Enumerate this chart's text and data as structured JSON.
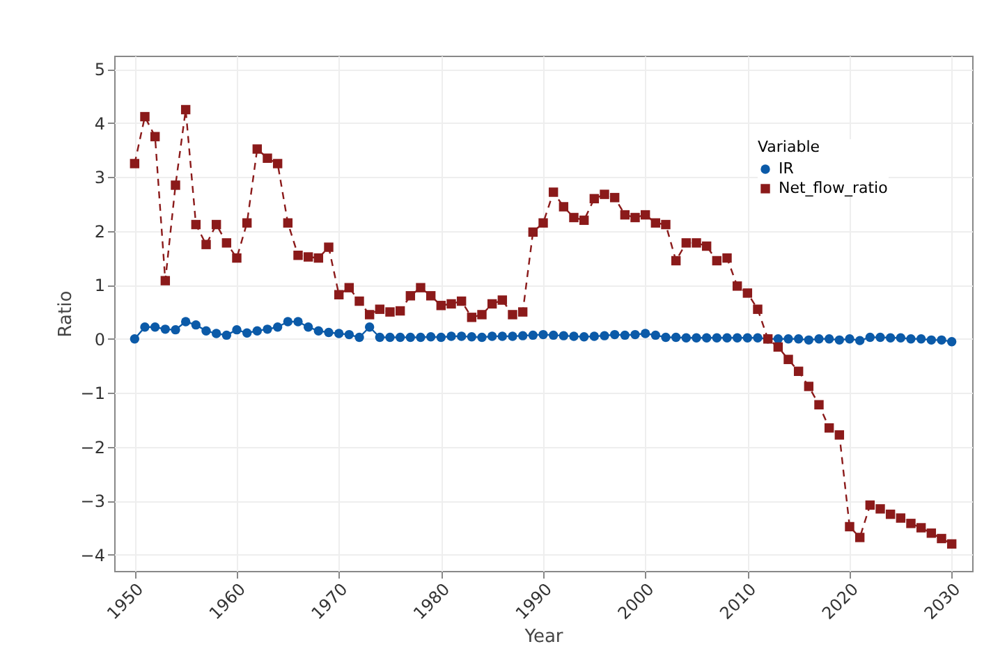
{
  "chart_data": {
    "type": "line",
    "xlabel": "Year",
    "ylabel": "Ratio",
    "legend_title": "Variable",
    "legend": "top right",
    "grid": true,
    "x": [
      1950,
      1951,
      1952,
      1953,
      1954,
      1955,
      1956,
      1957,
      1958,
      1959,
      1960,
      1961,
      1962,
      1963,
      1964,
      1965,
      1966,
      1967,
      1968,
      1969,
      1970,
      1971,
      1972,
      1973,
      1974,
      1975,
      1976,
      1977,
      1978,
      1979,
      1980,
      1981,
      1982,
      1983,
      1984,
      1985,
      1986,
      1987,
      1988,
      1989,
      1990,
      1991,
      1992,
      1993,
      1994,
      1995,
      1996,
      1997,
      1998,
      1999,
      2000,
      2001,
      2002,
      2003,
      2004,
      2005,
      2006,
      2007,
      2008,
      2009,
      2010,
      2011,
      2012,
      2013,
      2014,
      2015,
      2016,
      2017,
      2018,
      2019,
      2020,
      2021,
      2022,
      2023,
      2024,
      2025,
      2026,
      2027,
      2028,
      2029,
      2030
    ],
    "series": [
      {
        "name": "IR",
        "color": "#0b5aa8",
        "marker": "circle",
        "line_style": "solid",
        "values": [
          0.0,
          0.22,
          0.22,
          0.18,
          0.17,
          0.32,
          0.26,
          0.15,
          0.1,
          0.07,
          0.17,
          0.11,
          0.15,
          0.18,
          0.22,
          0.32,
          0.32,
          0.22,
          0.15,
          0.12,
          0.1,
          0.08,
          0.03,
          0.22,
          0.03,
          0.03,
          0.03,
          0.03,
          0.03,
          0.04,
          0.03,
          0.05,
          0.05,
          0.04,
          0.03,
          0.05,
          0.05,
          0.05,
          0.06,
          0.07,
          0.08,
          0.07,
          0.06,
          0.05,
          0.04,
          0.05,
          0.06,
          0.08,
          0.07,
          0.08,
          0.1,
          0.07,
          0.03,
          0.03,
          0.02,
          0.02,
          0.02,
          0.02,
          0.02,
          0.02,
          0.02,
          0.02,
          0.0,
          0.0,
          0.0,
          0.0,
          -0.02,
          0.0,
          0.0,
          -0.02,
          0.0,
          -0.03,
          0.03,
          0.03,
          0.02,
          0.02,
          0.0,
          0.0,
          -0.02,
          -0.02,
          -0.05
        ]
      },
      {
        "name": "Net_flow_ratio",
        "color": "#8b1a1a",
        "marker": "square",
        "line_style": "dashed",
        "values": [
          3.25,
          4.12,
          3.75,
          1.08,
          2.85,
          4.25,
          2.12,
          1.75,
          2.12,
          1.78,
          1.5,
          2.15,
          3.52,
          3.35,
          3.25,
          2.15,
          1.55,
          1.52,
          1.5,
          1.7,
          0.82,
          0.95,
          0.7,
          0.45,
          0.55,
          0.5,
          0.52,
          0.8,
          0.95,
          0.8,
          0.62,
          0.65,
          0.7,
          0.4,
          0.45,
          0.65,
          0.72,
          0.45,
          0.5,
          1.98,
          2.15,
          2.72,
          2.45,
          2.25,
          2.2,
          2.6,
          2.68,
          2.62,
          2.3,
          2.25,
          2.3,
          2.15,
          2.12,
          1.45,
          1.78,
          1.78,
          1.72,
          1.45,
          1.5,
          0.98,
          0.85,
          0.55,
          0.0,
          -0.15,
          -0.38,
          -0.6,
          -0.88,
          -1.22,
          -1.65,
          -1.78,
          -3.48,
          -3.68,
          -3.08,
          -3.15,
          -3.25,
          -3.32,
          -3.42,
          -3.5,
          -3.6,
          -3.7,
          -3.8
        ]
      }
    ],
    "xlim": [
      1948,
      2032
    ],
    "xticks": [
      1950,
      1960,
      1970,
      1980,
      1990,
      2000,
      2010,
      2020,
      2030
    ],
    "ylim": [
      -4.3,
      5.25
    ],
    "yticks": [
      -4,
      -3,
      -2,
      -1,
      0,
      1,
      2,
      3,
      4,
      5
    ]
  }
}
